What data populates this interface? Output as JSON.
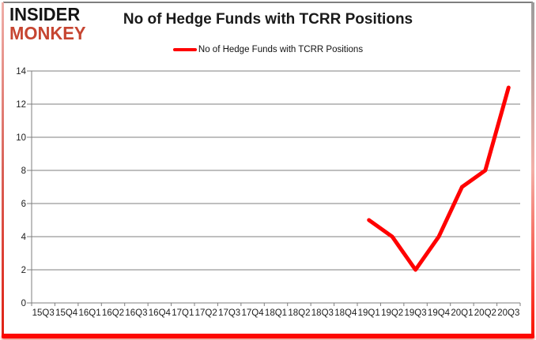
{
  "branding": {
    "logo_line1": "INSIDER",
    "logo_line2": "MONKEY",
    "logo_color": "#C64531"
  },
  "chart_data": {
    "type": "line",
    "title": "No of Hedge Funds with TCRR Positions",
    "categories": [
      "15Q3",
      "15Q4",
      "16Q1",
      "16Q2",
      "16Q3",
      "16Q4",
      "17Q1",
      "17Q2",
      "17Q3",
      "17Q4",
      "18Q1",
      "18Q2",
      "18Q3",
      "18Q4",
      "19Q1",
      "19Q2",
      "19Q3",
      "19Q4",
      "20Q1",
      "20Q2",
      "20Q3"
    ],
    "series": [
      {
        "name": "No of Hedge Funds with TCRR Positions",
        "color": "#FF0000",
        "values": [
          null,
          null,
          null,
          null,
          null,
          null,
          null,
          null,
          null,
          null,
          null,
          null,
          null,
          null,
          5,
          4,
          2,
          4,
          7,
          8,
          13
        ]
      }
    ],
    "xlabel": "",
    "ylabel": "",
    "ylim": [
      0,
      14
    ],
    "y_step": 2,
    "grid": true,
    "grid_color": "#7f7f7f",
    "legend_position": "top"
  }
}
